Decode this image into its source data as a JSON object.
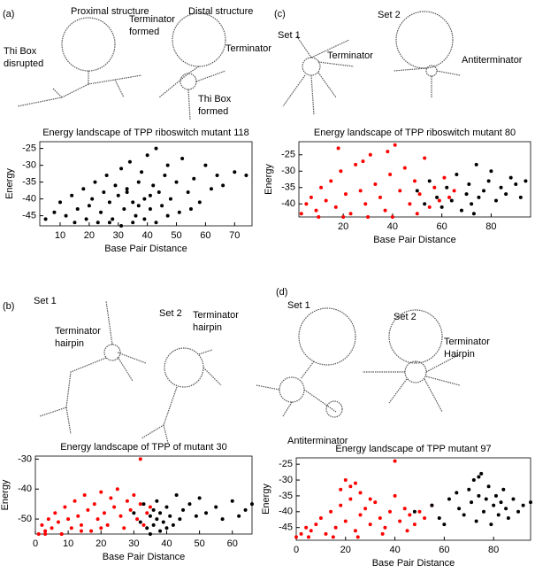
{
  "chart_data": [
    {
      "type": "scatter",
      "panel": "(a)",
      "title": "Energy landscape of TPP riboswitch mutant 118",
      "x_label": "Base Pair Distance",
      "y_label": "Energy",
      "annotations": [
        "Proximal structure",
        "Terminator",
        "formed",
        "Distal structure",
        "Terminator",
        "Thi Box",
        "disrupted",
        "Thi Box",
        "formed"
      ],
      "xlim": [
        3,
        76
      ],
      "ylim": [
        -48,
        -23
      ],
      "xticks": [
        10,
        20,
        30,
        40,
        50,
        60,
        70
      ],
      "yticks": [
        -25,
        -30,
        -35,
        -40,
        -45
      ],
      "series": [
        {
          "color": "#000000",
          "x": [
            5,
            8,
            10,
            12,
            14,
            16,
            18,
            20,
            21,
            22,
            24,
            25,
            26,
            27,
            28,
            29,
            30,
            31,
            32,
            33,
            34,
            35,
            36,
            37,
            38,
            39,
            40,
            41,
            42,
            43,
            44,
            45,
            46,
            47,
            48,
            50,
            52,
            54,
            56,
            58,
            60,
            62,
            64,
            66,
            70,
            74,
            15,
            19,
            23,
            27,
            31,
            35,
            39,
            43,
            47,
            51,
            55,
            33,
            37,
            41
          ],
          "y": [
            -46,
            -44,
            -41,
            -45,
            -39,
            -43,
            -37,
            -42,
            -40,
            -35,
            -44,
            -38,
            -33,
            -41,
            -46,
            -36,
            -39,
            -31,
            -43,
            -37,
            -29,
            -41,
            -45,
            -35,
            -32,
            -40,
            -27,
            -43,
            -36,
            -25,
            -38,
            -42,
            -33,
            -30,
            -40,
            -35,
            -28,
            -38,
            -34,
            -41,
            -30,
            -37,
            -33,
            -36,
            -32,
            -33,
            -47,
            -46,
            -47,
            -47,
            -48,
            -47,
            -46,
            -47,
            -45,
            -44,
            -43,
            -38,
            -42,
            -39
          ]
        }
      ]
    },
    {
      "type": "scatter",
      "panel": "(c)",
      "title": "Energy landscape of TPP riboswitch mutant 80",
      "x_label": "Base Pair Distance",
      "y_label": "Energy",
      "annotations": [
        "Set 1",
        "Set 2",
        "Terminator",
        "Antiterminator"
      ],
      "xlim": [
        2,
        96
      ],
      "ylim": [
        -44,
        -21
      ],
      "xticks": [
        20,
        40,
        60,
        80
      ],
      "yticks": [
        -25,
        -30,
        -35,
        -40
      ],
      "series": [
        {
          "color": "#ff0000",
          "x": [
            3,
            5,
            7,
            9,
            11,
            13,
            15,
            17,
            19,
            21,
            23,
            25,
            27,
            29,
            31,
            33,
            35,
            37,
            39,
            41,
            43,
            45,
            47,
            49,
            51,
            53,
            55,
            57,
            59,
            61,
            63,
            65,
            10,
            20,
            30,
            40,
            50,
            18,
            28,
            38
          ],
          "y": [
            -43,
            -40,
            -38,
            -42,
            -35,
            -39,
            -33,
            -41,
            -30,
            -37,
            -43,
            -28,
            -36,
            -40,
            -25,
            -34,
            -38,
            -42,
            -31,
            -22,
            -36,
            -29,
            -40,
            -33,
            -37,
            -26,
            -41,
            -35,
            -39,
            -32,
            -38,
            -36,
            -44,
            -44,
            -44,
            -44,
            -43,
            -23,
            -27,
            -24
          ]
        },
        {
          "color": "#000000",
          "x": [
            50,
            53,
            55,
            58,
            60,
            62,
            64,
            66,
            68,
            70,
            71,
            72,
            74,
            75,
            77,
            79,
            80,
            82,
            84,
            86,
            88,
            90,
            92,
            94,
            73
          ],
          "y": [
            -36,
            -40,
            -33,
            -38,
            -41,
            -35,
            -39,
            -31,
            -42,
            -37,
            -34,
            -40,
            -28,
            -38,
            -36,
            -33,
            -30,
            -39,
            -35,
            -37,
            -32,
            -34,
            -38,
            -33,
            -43
          ]
        }
      ]
    },
    {
      "type": "scatter",
      "panel": "(b)",
      "title": "Energy landscape of TPP of mutant 30",
      "x_label": "Base Pair Distance",
      "y_label": "Energy",
      "annotations": [
        "Set 1",
        "Terminator",
        "hairpin",
        "Set 2",
        "Terminator",
        "hairpin"
      ],
      "xlim": [
        0,
        66
      ],
      "ylim": [
        -55,
        -29
      ],
      "xticks": [
        0,
        10,
        20,
        30,
        40,
        50,
        60
      ],
      "yticks": [
        -30,
        -40,
        -50
      ],
      "series": [
        {
          "color": "#ff0000",
          "x": [
            1,
            2,
            3,
            4,
            5,
            6,
            7,
            8,
            9,
            10,
            11,
            12,
            13,
            14,
            15,
            16,
            17,
            18,
            19,
            20,
            21,
            22,
            23,
            24,
            25,
            26,
            27,
            28,
            29,
            30,
            31,
            32,
            33,
            34,
            35,
            3,
            8,
            14,
            20,
            32
          ],
          "y": [
            -55,
            -52,
            -54,
            -50,
            -53,
            -48,
            -51,
            -55,
            -46,
            -50,
            -53,
            -44,
            -49,
            -52,
            -42,
            -47,
            -54,
            -45,
            -50,
            -41,
            -48,
            -52,
            -43,
            -46,
            -40,
            -49,
            -53,
            -44,
            -47,
            -42,
            -50,
            -45,
            -52,
            -48,
            -46,
            -55,
            -55,
            -54,
            -53,
            -30
          ]
        },
        {
          "color": "#000000",
          "x": [
            30,
            32,
            33,
            34,
            35,
            35,
            36,
            36,
            37,
            37,
            38,
            38,
            39,
            40,
            40,
            41,
            42,
            43,
            44,
            45,
            47,
            49,
            50,
            52,
            55,
            57,
            60,
            62,
            64,
            66
          ],
          "y": [
            -48,
            -51,
            -45,
            -53,
            -49,
            -55,
            -47,
            -52,
            -50,
            -44,
            -54,
            -48,
            -51,
            -46,
            -53,
            -49,
            -52,
            -42,
            -50,
            -47,
            -45,
            -49,
            -43,
            -48,
            -46,
            -50,
            -44,
            -49,
            -47,
            -45
          ]
        }
      ]
    },
    {
      "type": "scatter",
      "panel": "(d)",
      "title": "Energy landscape of TPP mutant 97",
      "x_label": "Base Pair Distance",
      "y_label": "Energy",
      "annotations": [
        "Set 1",
        "Set 2",
        "Terminator",
        "Hairpin",
        "Antiterminator"
      ],
      "xlim": [
        0,
        95
      ],
      "ylim": [
        -49,
        -23
      ],
      "xticks": [
        0,
        20,
        40,
        60,
        80
      ],
      "yticks": [
        -25,
        -30,
        -35,
        -40,
        -45
      ],
      "series": [
        {
          "color": "#ff0000",
          "x": [
            0,
            2,
            4,
            6,
            8,
            10,
            12,
            14,
            16,
            18,
            20,
            22,
            24,
            26,
            28,
            30,
            32,
            34,
            36,
            38,
            40,
            42,
            44,
            46,
            48,
            50,
            52,
            55,
            5,
            15,
            25,
            35,
            45,
            18,
            22,
            26,
            30,
            20,
            24,
            40
          ],
          "y": [
            -48,
            -47,
            -45,
            -46,
            -44,
            -42,
            -47,
            -40,
            -45,
            -38,
            -43,
            -36,
            -46,
            -41,
            -39,
            -44,
            -37,
            -42,
            -45,
            -40,
            -35,
            -43,
            -39,
            -41,
            -44,
            -40,
            -42,
            -38,
            -48,
            -48,
            -48,
            -47,
            -46,
            -33,
            -32,
            -34,
            -36,
            -30,
            -31,
            -24
          ]
        },
        {
          "color": "#000000",
          "x": [
            48,
            55,
            58,
            62,
            65,
            66,
            68,
            70,
            71,
            72,
            73,
            74,
            75,
            76,
            77,
            78,
            79,
            80,
            81,
            82,
            83,
            84,
            85,
            86,
            88,
            90,
            92,
            95,
            60,
            74
          ],
          "y": [
            -40,
            -38,
            -42,
            -36,
            -34,
            -39,
            -41,
            -33,
            -37,
            -30,
            -43,
            -35,
            -28,
            -40,
            -36,
            -32,
            -44,
            -38,
            -35,
            -41,
            -37,
            -33,
            -39,
            -42,
            -36,
            -40,
            -38,
            -37,
            -44,
            -29
          ]
        }
      ]
    }
  ]
}
